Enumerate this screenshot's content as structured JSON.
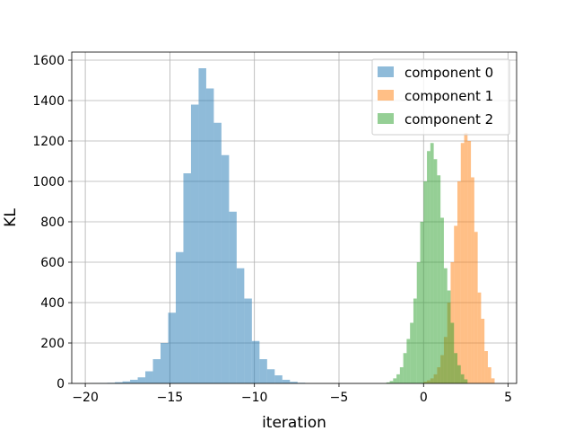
{
  "chart_data": {
    "type": "histogram",
    "xlabel": "iteration",
    "ylabel": "KL",
    "xlim": [
      -20.8,
      5.5
    ],
    "ylim": [
      0,
      1640
    ],
    "x_ticks": [
      -20,
      -15,
      -10,
      -5,
      0,
      5
    ],
    "x_tick_labels": [
      "−20",
      "−15",
      "−10",
      "−5",
      "0",
      "5"
    ],
    "y_ticks": [
      0,
      200,
      400,
      600,
      800,
      1000,
      1200,
      1400,
      1600
    ],
    "y_tick_labels": [
      "0",
      "200",
      "400",
      "600",
      "800",
      "1000",
      "1200",
      "1400",
      "1600"
    ],
    "grid": true,
    "legend_position": "top-right",
    "series": [
      {
        "name": "component 0",
        "color": "#1f77b4",
        "opacity": 0.5,
        "bin_width": 0.45,
        "bin_starts": [
          -19.6,
          -19.15,
          -18.7,
          -18.25,
          -17.8,
          -17.35,
          -16.9,
          -16.45,
          -16.0,
          -15.55,
          -15.1,
          -14.65,
          -14.2,
          -13.75,
          -13.3,
          -12.85,
          -12.4,
          -11.95,
          -11.5,
          -11.05,
          -10.6,
          -10.15,
          -9.7,
          -9.25,
          -8.8,
          -8.35,
          -7.9,
          -7.45
        ],
        "counts": [
          1,
          2,
          3,
          6,
          10,
          18,
          30,
          60,
          120,
          200,
          350,
          650,
          1040,
          1380,
          1560,
          1460,
          1290,
          1130,
          850,
          570,
          420,
          210,
          120,
          70,
          40,
          18,
          8,
          3
        ]
      },
      {
        "name": "component 1",
        "color": "#ff7f0e",
        "opacity": 0.5,
        "bin_width": 0.2,
        "bin_starts": [
          0.0,
          0.2,
          0.4,
          0.6,
          0.8,
          1.0,
          1.2,
          1.4,
          1.6,
          1.8,
          2.0,
          2.2,
          2.4,
          2.6,
          2.8,
          3.0,
          3.2,
          3.4,
          3.6,
          3.8,
          4.0
        ],
        "counts": [
          8,
          15,
          25,
          45,
          80,
          140,
          230,
          400,
          600,
          780,
          1000,
          1190,
          1240,
          1200,
          1020,
          750,
          450,
          320,
          160,
          80,
          25
        ]
      },
      {
        "name": "component 2",
        "color": "#2ca02c",
        "opacity": 0.5,
        "bin_width": 0.2,
        "bin_starts": [
          -2.2,
          -2.0,
          -1.8,
          -1.6,
          -1.4,
          -1.2,
          -1.0,
          -0.8,
          -0.6,
          -0.4,
          -0.2,
          0.0,
          0.2,
          0.4,
          0.6,
          0.8,
          1.0,
          1.2,
          1.4,
          1.6,
          1.8,
          2.0,
          2.2,
          2.4
        ],
        "counts": [
          5,
          12,
          25,
          45,
          80,
          150,
          220,
          300,
          420,
          600,
          800,
          1000,
          1150,
          1190,
          1110,
          1030,
          820,
          570,
          460,
          300,
          150,
          90,
          45,
          20
        ]
      }
    ]
  }
}
